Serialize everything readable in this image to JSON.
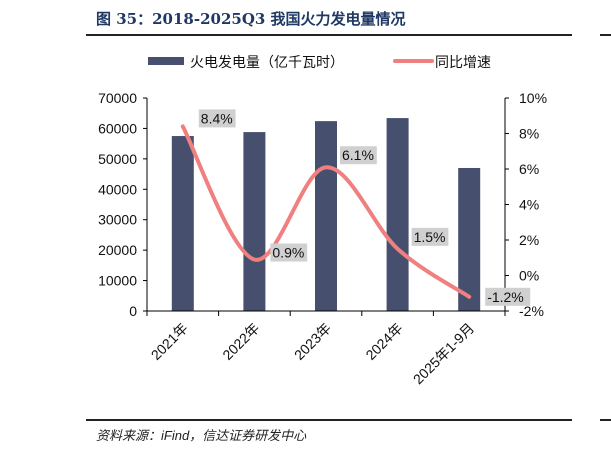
{
  "header": {
    "title": "图 35：2018-2025Q3 我国火力发电量情况"
  },
  "footer": {
    "source": "资料来源：iFind，信达证券研发中心"
  },
  "chart_data": {
    "type": "bar",
    "categories": [
      "2021年",
      "2022年",
      "2023年",
      "2024年",
      "2025年1-9月"
    ],
    "series": [
      {
        "name": "火电发电量（亿千瓦时）",
        "type": "bar",
        "axis": "left",
        "color": "#464f6e",
        "values": [
          57500,
          58800,
          62400,
          63400,
          47000
        ]
      },
      {
        "name": "同比增速",
        "type": "line",
        "axis": "right",
        "color": "#f08080",
        "values": [
          8.4,
          0.9,
          6.1,
          1.5,
          -1.2
        ],
        "labels": [
          "8.4%",
          "0.9%",
          "6.1%",
          "1.5%",
          "-1.2%"
        ]
      }
    ],
    "y_left": {
      "lim": [
        0,
        70000
      ],
      "ticks": [
        "0",
        "10000",
        "20000",
        "30000",
        "40000",
        "50000",
        "60000",
        "70000"
      ]
    },
    "y_right": {
      "lim": [
        -2,
        10
      ],
      "ticks": [
        "-2%",
        "0%",
        "2%",
        "4%",
        "6%",
        "8%",
        "10%"
      ]
    },
    "legend": "top",
    "grid": false
  }
}
